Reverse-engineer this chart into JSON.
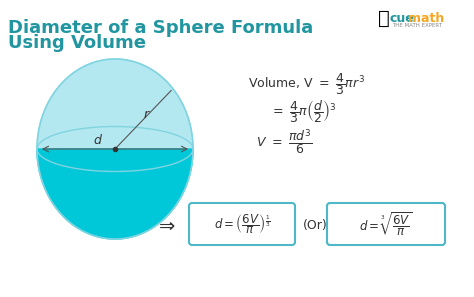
{
  "title_line1": "Diameter of a Sphere Formula",
  "title_line2": "Using Volume",
  "title_color": "#2196a0",
  "title_fontsize": 13,
  "bg_color": "#ffffff",
  "sphere_fill_top": "#b3e8f0",
  "sphere_fill_bottom": "#00c8d8",
  "sphere_stroke": "#80d8e8",
  "formula1": "Volume, V = $\\dfrac{4}{3}\\pi r^3$",
  "formula2": "$= \\dfrac{4}{3}\\pi \\left(\\dfrac{d}{2}\\right)^3$",
  "formula3": "$V = \\dfrac{\\pi d^3}{6}$",
  "box1": "$d = \\left(\\dfrac{6V}{\\pi}\\right)^{\\frac{1}{3}}$",
  "box2": "$d = \\sqrt[3]{\\dfrac{6V}{\\pi}}$",
  "box_color": "#4db8c8",
  "text_color": "#333333",
  "cuemath_blue": "#2196a0",
  "cuemath_orange": "#f5a623"
}
